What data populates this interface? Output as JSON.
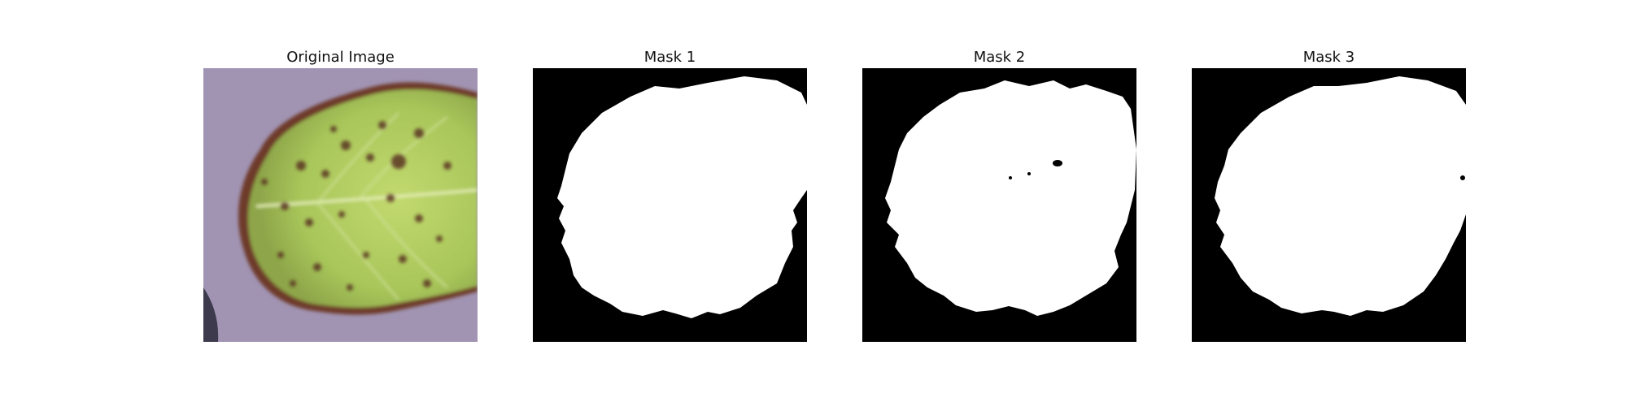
{
  "panels": [
    {
      "title": "Original Image",
      "image": "strawberry-leaf-with-brown-spots-photo"
    },
    {
      "title": "Mask 1",
      "image": "binary-segmentation-mask"
    },
    {
      "title": "Mask 2",
      "image": "binary-segmentation-mask"
    },
    {
      "title": "Mask 3",
      "image": "binary-segmentation-mask"
    }
  ],
  "colors": {
    "background": "#ffffff",
    "mask_background": "#000000",
    "mask_foreground": "#ffffff",
    "leaf_green": "#a8c65a",
    "leaf_spot": "#5a3422",
    "surface": "#a79ab9"
  }
}
